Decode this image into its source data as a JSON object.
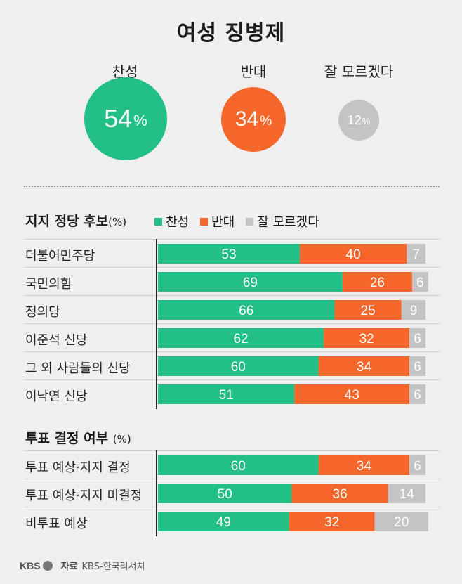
{
  "title": "여성 징병제",
  "summary": {
    "items": [
      {
        "label": "찬성",
        "value": 54,
        "unit": "%",
        "color": "#22bf87"
      },
      {
        "label": "반대",
        "value": 34,
        "unit": "%",
        "color": "#f4662a"
      },
      {
        "label": "잘 모르겠다",
        "value": 12,
        "unit": "%",
        "color": "#c4c4c4"
      }
    ]
  },
  "legend": {
    "items": [
      {
        "label": "찬성",
        "color": "#22bf87"
      },
      {
        "label": "반대",
        "color": "#f4662a"
      },
      {
        "label": "잘 모르겠다",
        "color": "#c4c4c4"
      }
    ]
  },
  "sections": [
    {
      "title": "지지 정당 후보",
      "unit": "(%)"
    },
    {
      "title": "투표 결정 여부",
      "unit": "(%)"
    }
  ],
  "source": {
    "logo": "KBS",
    "label": "자료",
    "text": "KBS-한국리서치"
  },
  "chart_data": [
    {
      "type": "bar",
      "stacked": true,
      "orientation": "horizontal",
      "title": "지지 정당 후보",
      "unit": "%",
      "categories": [
        "더불어민주당",
        "국민의힘",
        "정의당",
        "이준석 신당",
        "그 외 사람들의 신당",
        "이낙연 신당"
      ],
      "series": [
        {
          "name": "찬성",
          "color": "#22bf87",
          "values": [
            53,
            69,
            66,
            62,
            60,
            51
          ]
        },
        {
          "name": "반대",
          "color": "#f4662a",
          "values": [
            40,
            26,
            25,
            32,
            34,
            43
          ]
        },
        {
          "name": "잘 모르겠다",
          "color": "#c4c4c4",
          "values": [
            7,
            6,
            9,
            6,
            6,
            6
          ]
        }
      ],
      "xlim": [
        0,
        100
      ]
    },
    {
      "type": "bar",
      "stacked": true,
      "orientation": "horizontal",
      "title": "투표 결정 여부",
      "unit": "%",
      "categories": [
        "투표 예상·지지 결정",
        "투표 예상·지지 미결정",
        "비투표 예상"
      ],
      "series": [
        {
          "name": "찬성",
          "color": "#22bf87",
          "values": [
            60,
            50,
            49
          ]
        },
        {
          "name": "반대",
          "color": "#f4662a",
          "values": [
            34,
            36,
            32
          ]
        },
        {
          "name": "잘 모르겠다",
          "color": "#c4c4c4",
          "values": [
            6,
            14,
            20
          ]
        }
      ],
      "xlim": [
        0,
        100
      ]
    }
  ]
}
